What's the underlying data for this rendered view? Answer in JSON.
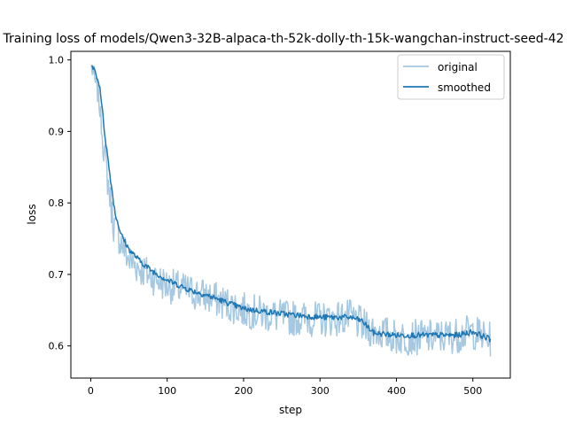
{
  "chart_data": {
    "type": "line",
    "title": "Training loss of models/Qwen3-32B-alpaca-th-52k-dolly-th-15k-wangchan-instruct-seed-42",
    "xlabel": "step",
    "ylabel": "loss",
    "xlim": [
      -26,
      549
    ],
    "ylim": [
      0.555,
      1.012
    ],
    "xticks": [
      0,
      100,
      200,
      300,
      400,
      500
    ],
    "yticks": [
      0.6,
      0.7,
      0.8,
      0.9,
      1.0
    ],
    "xtick_labels": [
      "0",
      "100",
      "200",
      "300",
      "400",
      "500"
    ],
    "ytick_labels": [
      "0.6",
      "0.7",
      "0.8",
      "0.9",
      "1.0"
    ],
    "legend_position": "top-right",
    "grid": false,
    "x_range": [
      1,
      523
    ],
    "series": [
      {
        "name": "original",
        "color": "#a6c8e0",
        "knots": [
          [
            1,
            0.99
          ],
          [
            10,
            0.95
          ],
          [
            20,
            0.85
          ],
          [
            30,
            0.77
          ],
          [
            50,
            0.72
          ],
          [
            75,
            0.7
          ],
          [
            100,
            0.685
          ],
          [
            150,
            0.67
          ],
          [
            200,
            0.65
          ],
          [
            250,
            0.64
          ],
          [
            300,
            0.637
          ],
          [
            340,
            0.64
          ],
          [
            360,
            0.625
          ],
          [
            400,
            0.612
          ],
          [
            450,
            0.612
          ],
          [
            480,
            0.615
          ],
          [
            500,
            0.62
          ],
          [
            523,
            0.608
          ]
        ],
        "noise_amplitude": 0.025
      },
      {
        "name": "smoothed",
        "color": "#1f77b4",
        "knots": [
          [
            1,
            0.992
          ],
          [
            5,
            0.986
          ],
          [
            12,
            0.962
          ],
          [
            18,
            0.9
          ],
          [
            25,
            0.84
          ],
          [
            32,
            0.785
          ],
          [
            40,
            0.755
          ],
          [
            50,
            0.735
          ],
          [
            65,
            0.718
          ],
          [
            80,
            0.705
          ],
          [
            100,
            0.692
          ],
          [
            130,
            0.678
          ],
          [
            160,
            0.668
          ],
          [
            200,
            0.652
          ],
          [
            250,
            0.645
          ],
          [
            300,
            0.64
          ],
          [
            340,
            0.64
          ],
          [
            355,
            0.635
          ],
          [
            370,
            0.618
          ],
          [
            400,
            0.615
          ],
          [
            450,
            0.615
          ],
          [
            480,
            0.615
          ],
          [
            500,
            0.62
          ],
          [
            523,
            0.609
          ]
        ],
        "noise_amplitude": 0.004
      }
    ]
  }
}
